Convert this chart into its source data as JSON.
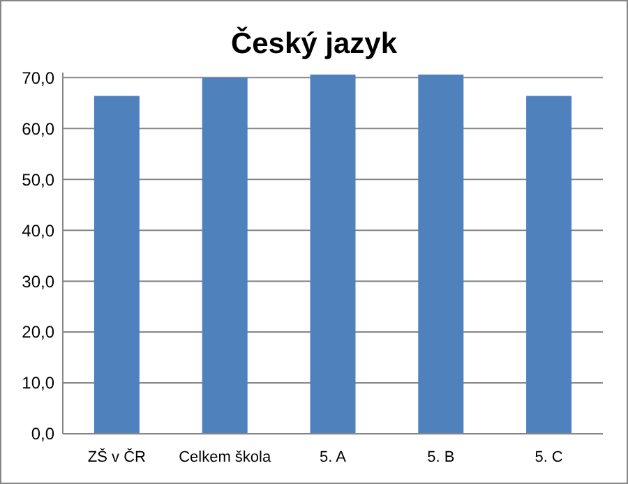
{
  "chart_data": {
    "type": "bar",
    "title": "Český jazyk",
    "categories": [
      "ZŠ v ČR",
      "Celkem škola",
      "5. A",
      "5. B",
      "5. C"
    ],
    "values": [
      66.4,
      70.0,
      70.6,
      70.6,
      66.4
    ],
    "color": "#4f81bd",
    "ylim": [
      0,
      71
    ],
    "yticks": [
      {
        "value": 0,
        "label": "0,0"
      },
      {
        "value": 10,
        "label": "10,0"
      },
      {
        "value": 20,
        "label": "20,0"
      },
      {
        "value": 30,
        "label": "30,0"
      },
      {
        "value": 40,
        "label": "40,0"
      },
      {
        "value": 50,
        "label": "50,0"
      },
      {
        "value": 60,
        "label": "60,0"
      },
      {
        "value": 70,
        "label": "70,0"
      }
    ],
    "grid": "y"
  }
}
